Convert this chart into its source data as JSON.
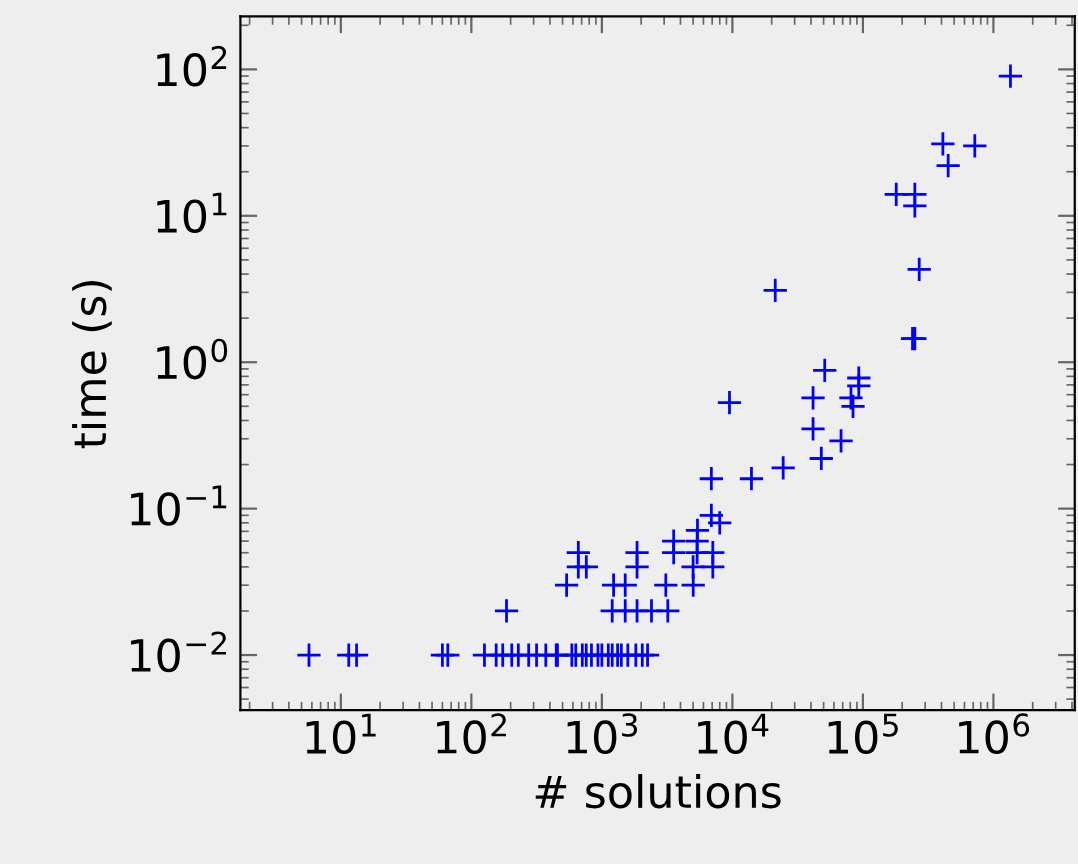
{
  "chart_data": {
    "type": "scatter",
    "xlabel": "# solutions",
    "ylabel": "time (s)",
    "log": "xy",
    "marker": "cross",
    "grid": false,
    "xlim": [
      1.7,
      4200000
    ],
    "ylim": [
      0.0042,
      230
    ],
    "xticks": [
      {
        "value": 10,
        "label": "10$^{1}$"
      },
      {
        "value": 100,
        "label": "10$^{2}$"
      },
      {
        "value": 1000,
        "label": "10$^{3}$"
      },
      {
        "value": 10000,
        "label": "10$^{4}$"
      },
      {
        "value": 100000,
        "label": "10$^{5}$"
      },
      {
        "value": 1000000,
        "label": "10$^{6}$"
      }
    ],
    "yticks": [
      {
        "value": 0.01,
        "label": "10$^{−2}$"
      },
      {
        "value": 0.1,
        "label": "10$^{−1}$"
      },
      {
        "value": 1,
        "label": "10$^{0}$"
      },
      {
        "value": 10,
        "label": "10$^{1}$"
      },
      {
        "value": 100,
        "label": "10$^{2}$"
      }
    ],
    "series": [
      {
        "color": "#0000ff",
        "x": [
          5.7,
          11.5,
          13.2,
          60,
          66,
          126,
          155,
          174,
          204,
          229,
          275,
          316,
          372,
          447,
          457,
          589,
          631,
          708,
          759,
          832,
          933,
          1000,
          1120,
          1200,
          1320,
          1410,
          1580,
          1820,
          2040,
          2240,
          186,
          1200,
          1510,
          1860,
          2400,
          3200,
          537,
          1230,
          1510,
          3090,
          5010,
          660,
          760,
          1860,
          5000,
          7080,
          660,
          1860,
          3550,
          5370,
          7080,
          3550,
          5370,
          8000,
          6900,
          5400,
          9500,
          6900,
          14000,
          24500,
          41500,
          48000,
          68000,
          41500,
          51000,
          81000,
          84000,
          93000,
          93000,
          240000,
          21300,
          1350000,
          410000,
          720000,
          450000,
          180000,
          250000,
          250000,
          270000,
          250000
        ],
        "values": [
          0.01,
          0.01,
          0.01,
          0.01,
          0.01,
          0.01,
          0.01,
          0.01,
          0.01,
          0.01,
          0.01,
          0.01,
          0.01,
          0.01,
          0.01,
          0.01,
          0.01,
          0.01,
          0.01,
          0.01,
          0.01,
          0.01,
          0.01,
          0.01,
          0.01,
          0.01,
          0.01,
          0.01,
          0.01,
          0.01,
          0.02,
          0.02,
          0.02,
          0.02,
          0.02,
          0.02,
          0.03,
          0.03,
          0.03,
          0.03,
          0.03,
          0.04,
          0.04,
          0.04,
          0.04,
          0.04,
          0.05,
          0.05,
          0.05,
          0.05,
          0.05,
          0.06,
          0.06,
          0.08,
          0.09,
          0.071,
          0.53,
          0.16,
          0.16,
          0.19,
          0.35,
          0.22,
          0.29,
          0.57,
          0.88,
          0.57,
          0.5,
          0.78,
          0.69,
          1.45,
          3.1,
          90,
          31,
          30,
          22,
          14,
          14,
          11.7,
          4.3,
          1.45
        ]
      }
    ]
  }
}
